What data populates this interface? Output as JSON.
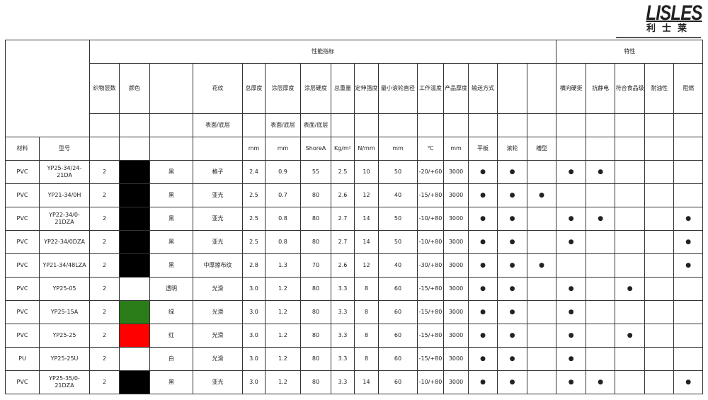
{
  "logo": {
    "text": "LISLES",
    "cn": "利士莱"
  },
  "header": {
    "group_performance": "性能指标",
    "group_features": "特性",
    "columns": [
      "织物层数",
      "颜色",
      "",
      "花纹",
      "总厚度",
      "涂层厚度",
      "涂层硬度",
      "总重量",
      "定伸强度",
      "最小滚轮直径",
      "工作温度",
      "产品厚度",
      "输送方式",
      "",
      "",
      "横向硬挺",
      "抗静电",
      "符合食品级",
      "耐油性",
      "阻燃"
    ],
    "sub": [
      "",
      "",
      "",
      "表面/底层",
      "",
      "表面/底层",
      "表面/底层",
      "",
      "",
      "",
      "",
      "",
      "",
      "",
      "",
      "",
      "",
      "",
      "",
      ""
    ],
    "material": "材料",
    "model": "型号",
    "units": [
      "",
      "",
      "",
      "",
      "mm",
      "mm",
      "ShoreA",
      "Kg/m²",
      "N/mm",
      "mm",
      "℃",
      "mm",
      "平板",
      "滚轮",
      "槽型",
      "",
      "",
      "",
      "",
      ""
    ]
  },
  "rows": [
    {
      "material": "PVC",
      "model": "YP25-34/24-21DA",
      "layers": "2",
      "color": "#000000",
      "color_name": "黑",
      "pattern": "格子",
      "total_thk": "2.4",
      "coat_thk": "0.9",
      "hardness": "55",
      "weight": "2.5",
      "tensile": "10",
      "min_roller": "50",
      "temp": "-20/+60",
      "width": "3000",
      "flags": [
        true,
        true,
        false,
        true,
        true,
        false,
        false,
        false
      ]
    },
    {
      "material": "PVC",
      "model": "YP21-34/0H",
      "layers": "2",
      "color": "#000000",
      "color_name": "黑",
      "pattern": "亚光",
      "total_thk": "2.5",
      "coat_thk": "0.7",
      "hardness": "80",
      "weight": "2.6",
      "tensile": "12",
      "min_roller": "40",
      "temp": "-15/+80",
      "width": "3000",
      "flags": [
        true,
        true,
        true,
        false,
        false,
        false,
        false,
        false
      ]
    },
    {
      "material": "PVC",
      "model": "YP22-34/0-21DZA",
      "layers": "2",
      "color": "#000000",
      "color_name": "黑",
      "pattern": "亚光",
      "total_thk": "2.5",
      "coat_thk": "0.8",
      "hardness": "80",
      "weight": "2.7",
      "tensile": "14",
      "min_roller": "50",
      "temp": "-10/+80",
      "width": "3000",
      "flags": [
        true,
        true,
        false,
        true,
        true,
        false,
        false,
        true
      ]
    },
    {
      "material": "PVC",
      "model": "YP22-34/0DZA",
      "layers": "2",
      "color": "#000000",
      "color_name": "黑",
      "pattern": "亚光",
      "total_thk": "2.5",
      "coat_thk": "0.8",
      "hardness": "80",
      "weight": "2.7",
      "tensile": "14",
      "min_roller": "50",
      "temp": "-10/+80",
      "width": "3000",
      "flags": [
        true,
        true,
        false,
        true,
        false,
        false,
        false,
        true
      ]
    },
    {
      "material": "PVC",
      "model": "YP21-34/48LZA",
      "layers": "2",
      "color": "#000000",
      "color_name": "黑",
      "pattern": "中厚擦布纹",
      "total_thk": "2.8",
      "coat_thk": "1.3",
      "hardness": "70",
      "weight": "2.6",
      "tensile": "12",
      "min_roller": "40",
      "temp": "-30/+80",
      "width": "3000",
      "flags": [
        true,
        true,
        true,
        false,
        false,
        false,
        false,
        true
      ]
    },
    {
      "material": "PVC",
      "model": "YP25-05",
      "layers": "2",
      "color": "#ffffff",
      "color_name": "透明",
      "pattern": "光滑",
      "total_thk": "3.0",
      "coat_thk": "1.2",
      "hardness": "80",
      "weight": "3.3",
      "tensile": "8",
      "min_roller": "60",
      "temp": "-15/+80",
      "width": "3000",
      "flags": [
        true,
        true,
        false,
        true,
        false,
        true,
        false,
        false
      ]
    },
    {
      "material": "PVC",
      "model": "YP25-15A",
      "layers": "2",
      "color": "#2b7d1a",
      "color_name": "绿",
      "pattern": "光滑",
      "total_thk": "3.0",
      "coat_thk": "1.2",
      "hardness": "80",
      "weight": "3.3",
      "tensile": "8",
      "min_roller": "60",
      "temp": "-15/+80",
      "width": "3000",
      "flags": [
        true,
        true,
        false,
        true,
        false,
        false,
        false,
        false
      ]
    },
    {
      "material": "PVC",
      "model": "YP25-25",
      "layers": "2",
      "color": "#ff0000",
      "color_name": "红",
      "pattern": "光滑",
      "total_thk": "3.0",
      "coat_thk": "1.2",
      "hardness": "80",
      "weight": "3.3",
      "tensile": "8",
      "min_roller": "60",
      "temp": "-15/+80",
      "width": "3000",
      "flags": [
        true,
        true,
        false,
        true,
        false,
        true,
        false,
        false
      ]
    },
    {
      "material": "PU",
      "model": "YP25-25U",
      "layers": "2",
      "color": "#ffffff",
      "color_name": "白",
      "pattern": "光滑",
      "total_thk": "3.0",
      "coat_thk": "1.2",
      "hardness": "80",
      "weight": "3.3",
      "tensile": "8",
      "min_roller": "60",
      "temp": "-15/+80",
      "width": "3000",
      "flags": [
        true,
        true,
        false,
        true,
        false,
        false,
        false,
        false
      ]
    },
    {
      "material": "PVC",
      "model": "YP25-35/0-21DZA",
      "layers": "2",
      "color": "#000000",
      "color_name": "黑",
      "pattern": "亚光",
      "total_thk": "3.0",
      "coat_thk": "1.2",
      "hardness": "80",
      "weight": "3.3",
      "tensile": "14",
      "min_roller": "60",
      "temp": "-10/+80",
      "width": "3000",
      "flags": [
        true,
        true,
        false,
        true,
        true,
        false,
        false,
        true
      ]
    }
  ],
  "dot_symbol": "●"
}
